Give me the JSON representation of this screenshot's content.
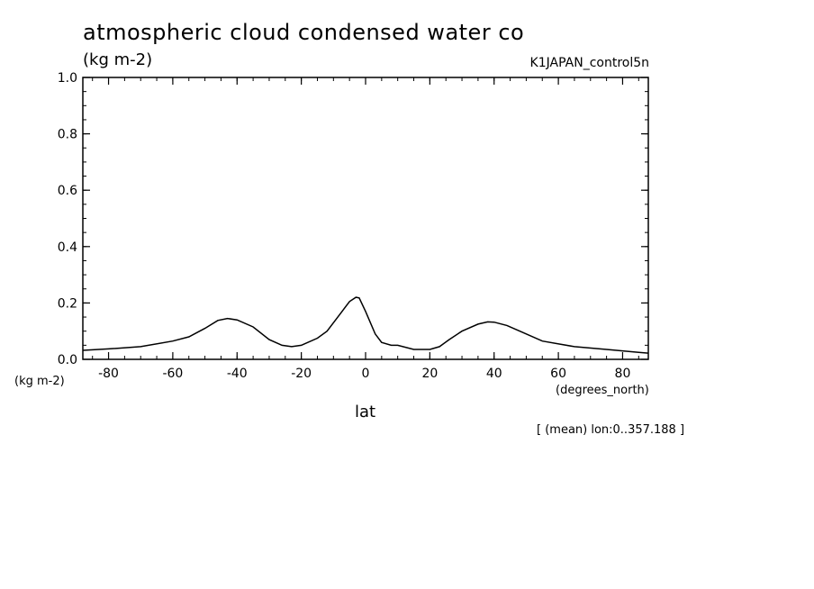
{
  "chart_data": {
    "type": "line",
    "title": "atmospheric cloud condensed water co",
    "ylabel": "(kg m-2)",
    "y_unit_left": "(kg m-2)",
    "run_name": "K1JAPAN_control5n",
    "xlabel": "lat",
    "x_units": "(degrees_north)",
    "note": "[ (mean) lon:0..357.188 ]",
    "xlim": [
      -88,
      88
    ],
    "ylim": [
      0,
      1
    ],
    "x_ticks": [
      -80,
      -60,
      -40,
      -20,
      0,
      20,
      40,
      60,
      80
    ],
    "x_tick_labels": [
      "-80",
      "-60",
      "-40",
      "-20",
      "0",
      "20",
      "40",
      "60",
      "80"
    ],
    "y_ticks": [
      0,
      0.2,
      0.4,
      0.6,
      0.8,
      1.0
    ],
    "y_tick_labels": [
      "0.0",
      "0.2",
      "0.4",
      "0.6",
      "0.8",
      "1.0"
    ],
    "series": [
      {
        "name": "cloud condensed water",
        "x": [
          -88,
          -80,
          -70,
          -60,
          -55,
          -50,
          -46,
          -43,
          -40,
          -35,
          -30,
          -26,
          -23,
          -20,
          -15,
          -12,
          -8,
          -5,
          -3,
          -2,
          0,
          3,
          5,
          8,
          10,
          15,
          20,
          23,
          26,
          30,
          35,
          38,
          40,
          44,
          48,
          55,
          65,
          75,
          85,
          88
        ],
        "values": [
          0.032,
          0.037,
          0.045,
          0.065,
          0.08,
          0.11,
          0.138,
          0.145,
          0.14,
          0.115,
          0.07,
          0.05,
          0.045,
          0.05,
          0.075,
          0.1,
          0.16,
          0.205,
          0.22,
          0.218,
          0.17,
          0.09,
          0.06,
          0.05,
          0.05,
          0.035,
          0.035,
          0.045,
          0.07,
          0.1,
          0.125,
          0.133,
          0.132,
          0.12,
          0.1,
          0.065,
          0.045,
          0.035,
          0.025,
          0.022
        ]
      }
    ]
  }
}
